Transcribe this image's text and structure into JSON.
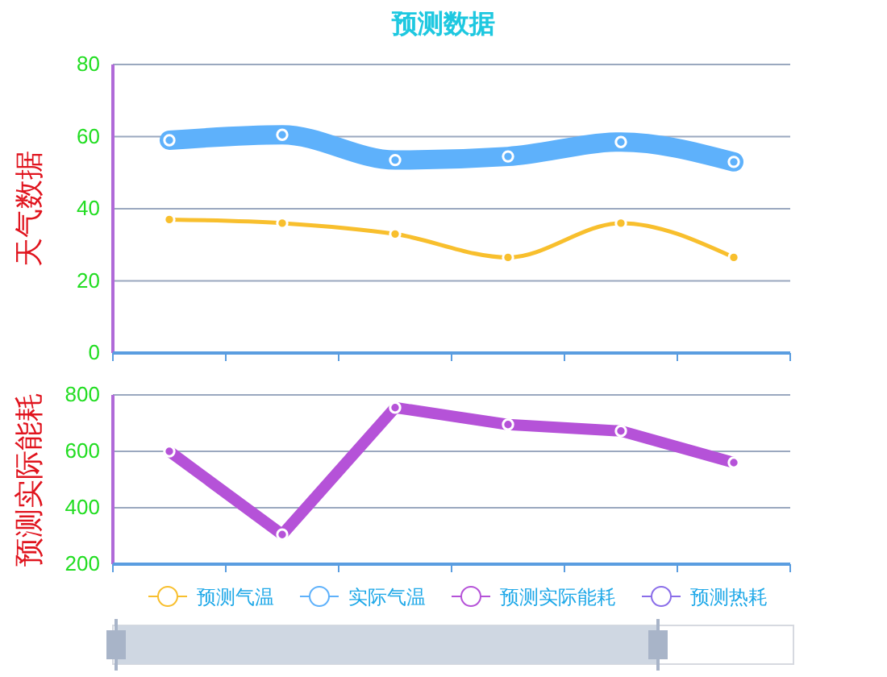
{
  "chart_data": [
    {
      "type": "line",
      "title": "预测数据",
      "ylabel": "天气数据",
      "categories": [
        null,
        null,
        null,
        null,
        null,
        null
      ],
      "ylim": [
        0,
        80
      ],
      "yticks": [
        0,
        20,
        40,
        60,
        80
      ],
      "grid": "y",
      "legend": "bottom",
      "marker": "circle",
      "tick_labels": "y",
      "series": [
        {
          "name": "预测气温",
          "color": "#f8bf2d",
          "values": [
            37,
            36,
            33,
            26.5,
            36,
            26.5
          ]
        },
        {
          "name": "实际气温",
          "color": "#5eb1fb",
          "values": [
            59,
            60.5,
            53.5,
            54.5,
            58.5,
            53
          ]
        }
      ]
    },
    {
      "type": "line",
      "ylabel": "预测实际能耗",
      "categories": [
        null,
        null,
        null,
        null,
        null,
        null
      ],
      "ylim": [
        200,
        800
      ],
      "yticks": [
        200,
        400,
        600,
        800
      ],
      "grid": "y",
      "legend": "bottom",
      "marker": "circle",
      "tick_labels": "y",
      "series": [
        {
          "name": "预测实际能耗",
          "color": "#b552d8",
          "values": [
            600,
            305,
            755,
            695,
            672,
            560
          ]
        },
        {
          "name": "预测热耗",
          "color": "#8a6de9",
          "values": [
            null,
            null,
            null,
            null,
            null,
            null
          ]
        }
      ]
    }
  ]
}
